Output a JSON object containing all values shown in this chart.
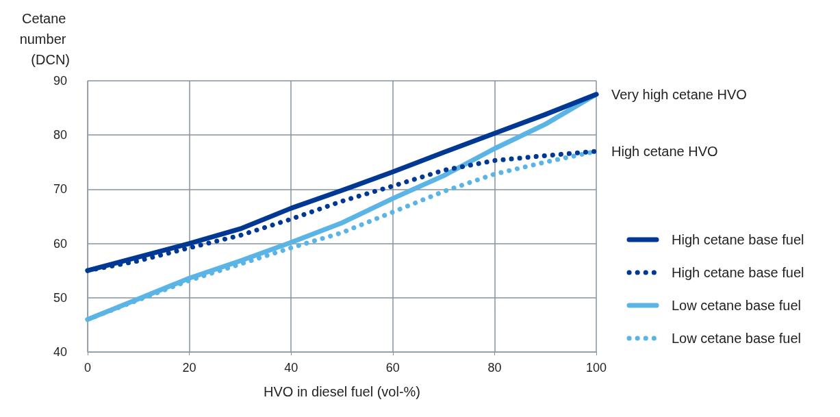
{
  "chart_data": {
    "type": "line",
    "ylabel": "Cetane number (DCN)",
    "xlabel": "HVO in diesel fuel (vol-%)",
    "x": [
      0,
      10,
      20,
      30,
      40,
      50,
      60,
      70,
      80,
      90,
      100
    ],
    "xlim": [
      0,
      100
    ],
    "xticks": [
      0,
      20,
      40,
      60,
      80,
      100
    ],
    "ylim": [
      40,
      90
    ],
    "yticks": [
      40,
      50,
      60,
      70,
      80,
      90
    ],
    "grid": true,
    "legend": "bottom right",
    "marker": "none",
    "series": [
      {
        "name": "High cetane base fuel",
        "color": "#003893",
        "line_style": "solid",
        "values": [
          55,
          57.5,
          60,
          62.7,
          66.5,
          69.8,
          73.2,
          76.8,
          80.3,
          83.8,
          87.5
        ]
      },
      {
        "name": "High cetane base fuel",
        "color": "#003893",
        "line_style": "dotted",
        "values": [
          55,
          56.8,
          59.2,
          61.5,
          64.5,
          67.8,
          70.6,
          73.5,
          75.3,
          76.2,
          77
        ]
      },
      {
        "name": "Low cetane base fuel",
        "color": "#5ab4e6",
        "line_style": "solid",
        "values": [
          46,
          49.8,
          53.6,
          56.8,
          60.2,
          63.8,
          68.3,
          72.5,
          77.5,
          82,
          87.5
        ]
      },
      {
        "name": "Low cetane base fuel",
        "color": "#5ab4e6",
        "line_style": "dotted",
        "values": [
          46,
          49.6,
          53.2,
          56.2,
          59.2,
          62,
          65.8,
          69.6,
          72.8,
          75,
          77
        ]
      }
    ],
    "annotations": [
      {
        "text": "Very high cetane HVO",
        "x": 100,
        "y": 87.5
      },
      {
        "text": "High cetane HVO",
        "x": 100,
        "y": 77
      }
    ]
  }
}
